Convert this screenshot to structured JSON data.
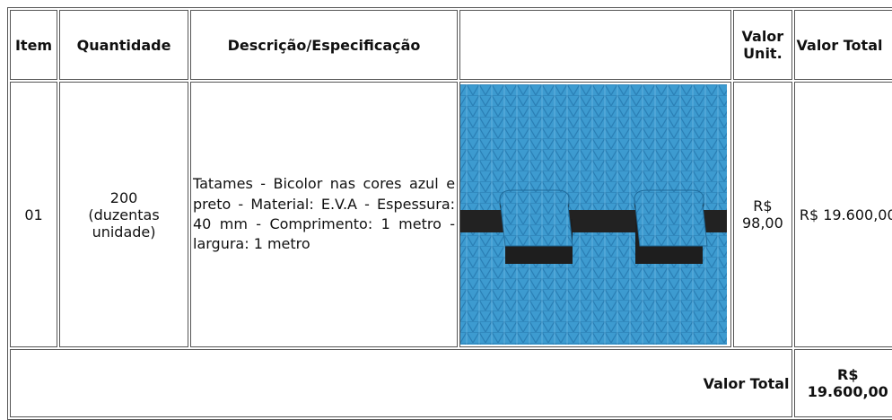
{
  "table": {
    "headers": {
      "item": "Item",
      "quantity": "Quantidade",
      "description": "Descrição/Especificação",
      "unit_price": "Valor Unit.",
      "total": "Valor Total"
    },
    "rows": [
      {
        "item": "01",
        "quantity": "200\n(duzentas\nunidade)",
        "description": "Tatames - Bicolor nas cores azul e preto - Material: E.V.A - Espessura: 40 mm - Comprimento: 1 metro - largura: 1 metro",
        "unit_price": "R$ 98,00",
        "total": "R$ 19.600,00"
      }
    ],
    "footer": {
      "label": "Valor Total",
      "value": "R$ 19.600,00"
    }
  }
}
